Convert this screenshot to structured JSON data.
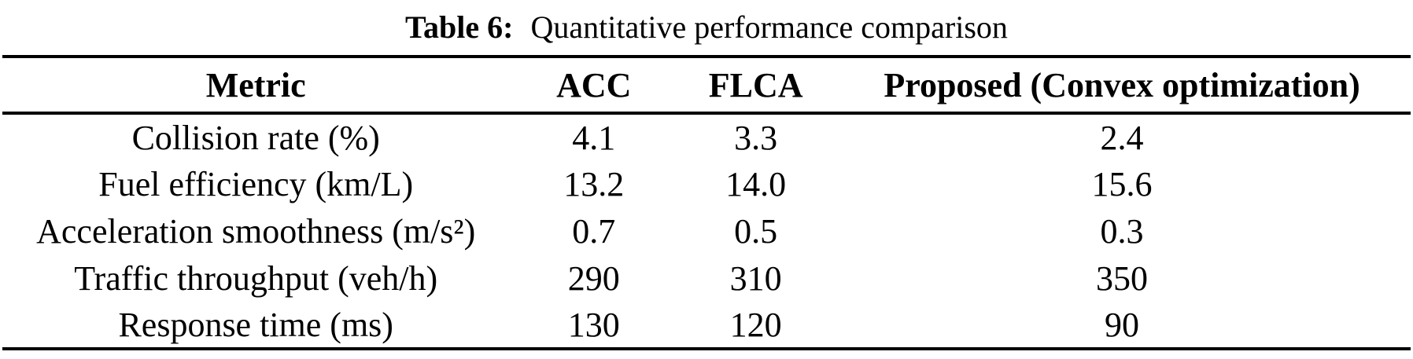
{
  "page": {
    "background_color": "#ffffff",
    "text_color": "#000000",
    "rule_color": "#000000"
  },
  "caption": {
    "label": "Table 6:",
    "text": "Quantitative performance comparison"
  },
  "table": {
    "headers": {
      "metric": "Metric",
      "acc": "ACC",
      "flca": "FLCA",
      "proposed": "Proposed (Convex optimization)"
    },
    "rows": [
      {
        "metric": "Collision rate (%)",
        "acc": "4.1",
        "flca": "3.3",
        "proposed": "2.4"
      },
      {
        "metric": "Fuel efficiency (km/L)",
        "acc": "13.2",
        "flca": "14.0",
        "proposed": "15.6"
      },
      {
        "metric": "Acceleration smoothness (m/s²)",
        "acc": "0.7",
        "flca": "0.5",
        "proposed": "0.3"
      },
      {
        "metric": "Traffic throughput (veh/h)",
        "acc": "290",
        "flca": "310",
        "proposed": "350"
      },
      {
        "metric": "Response time (ms)",
        "acc": "130",
        "flca": "120",
        "proposed": "90"
      }
    ]
  }
}
